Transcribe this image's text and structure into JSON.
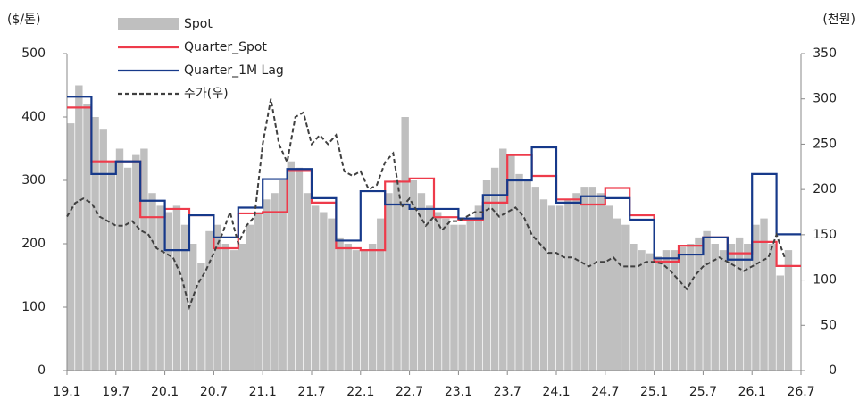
{
  "chart_data": {
    "type": "combo",
    "y_label": "($/톤)",
    "y2_label": "(천원)",
    "xlim": [
      0,
      90
    ],
    "xticks": [
      {
        "value": 0,
        "label": "19.1"
      },
      {
        "value": 6,
        "label": "19.7"
      },
      {
        "value": 12,
        "label": "20.1"
      },
      {
        "value": 18,
        "label": "20.7"
      },
      {
        "value": 24,
        "label": "21.1"
      },
      {
        "value": 30,
        "label": "21.7"
      },
      {
        "value": 36,
        "label": "22.1"
      },
      {
        "value": 42,
        "label": "22.7"
      },
      {
        "value": 48,
        "label": "23.1"
      },
      {
        "value": 54,
        "label": "23.7"
      },
      {
        "value": 60,
        "label": "24.1"
      },
      {
        "value": 66,
        "label": "24.7"
      },
      {
        "value": 72,
        "label": "25.1"
      },
      {
        "value": 78,
        "label": "25.7"
      },
      {
        "value": 84,
        "label": "26.1"
      },
      {
        "value": 90,
        "label": "26.7"
      }
    ],
    "ylim": [
      0,
      500
    ],
    "yticks": [
      0,
      100,
      200,
      300,
      400,
      500
    ],
    "y2lim": [
      0,
      350
    ],
    "y2ticks": [
      0,
      50,
      100,
      150,
      200,
      250,
      300,
      350
    ],
    "series": [
      {
        "name": "Spot",
        "type": "bar",
        "color": "#bfbfbf",
        "x": [
          0,
          1,
          2,
          3,
          4,
          5,
          6,
          7,
          8,
          9,
          10,
          11,
          12,
          13,
          14,
          15,
          16,
          17,
          18,
          19,
          20,
          21,
          22,
          23,
          24,
          25,
          26,
          27,
          28,
          29,
          30,
          31,
          32,
          33,
          34,
          35,
          36,
          37,
          38,
          39,
          40,
          41,
          42,
          43,
          44,
          45,
          46,
          47,
          48,
          49,
          50,
          51,
          52,
          53,
          54,
          55,
          56,
          57,
          58,
          59,
          60,
          61,
          62,
          63,
          64,
          65,
          66,
          67,
          68,
          69,
          70,
          71,
          72,
          73,
          74,
          75,
          76,
          77,
          78,
          79,
          80,
          81,
          82,
          83,
          84,
          85,
          86,
          87,
          88
        ],
        "values": [
          390,
          450,
          420,
          400,
          380,
          330,
          350,
          320,
          340,
          350,
          280,
          260,
          250,
          260,
          230,
          200,
          170,
          220,
          230,
          200,
          190,
          200,
          230,
          250,
          270,
          280,
          300,
          330,
          320,
          280,
          260,
          250,
          240,
          210,
          200,
          190,
          190,
          200,
          240,
          280,
          300,
          400,
          300,
          280,
          260,
          250,
          240,
          230,
          230,
          240,
          260,
          300,
          320,
          350,
          340,
          310,
          300,
          290,
          270,
          260,
          260,
          270,
          280,
          290,
          290,
          280,
          260,
          240,
          230,
          200,
          190,
          185,
          180,
          190,
          190,
          195,
          200,
          210,
          220,
          200,
          190,
          200,
          210,
          200,
          230,
          240,
          200,
          150,
          190
        ]
      },
      {
        "name": "Quarter_Spot",
        "type": "step",
        "color": "#ee3b4b",
        "x": [
          0,
          3,
          6,
          9,
          12,
          15,
          18,
          21,
          24,
          27,
          30,
          33,
          36,
          39,
          42,
          45,
          48,
          51,
          54,
          57,
          60,
          63,
          66,
          69,
          72,
          75,
          78,
          81,
          84,
          87
        ],
        "values": [
          415,
          330,
          330,
          242,
          255,
          245,
          193,
          248,
          250,
          315,
          265,
          193,
          190,
          298,
          303,
          242,
          237,
          265,
          340,
          307,
          270,
          262,
          288,
          245,
          172,
          197,
          210,
          185,
          203,
          165
        ]
      },
      {
        "name": "Quarter_1M Lag",
        "type": "step",
        "color": "#16398a",
        "x": [
          0,
          3,
          6,
          9,
          12,
          15,
          18,
          21,
          24,
          27,
          30,
          33,
          36,
          39,
          42,
          45,
          48,
          51,
          54,
          57,
          60,
          63,
          66,
          69,
          72,
          75,
          78,
          81,
          84,
          87
        ],
        "values": [
          432,
          310,
          330,
          268,
          190,
          245,
          210,
          257,
          302,
          318,
          272,
          205,
          283,
          262,
          255,
          255,
          240,
          277,
          300,
          352,
          265,
          275,
          272,
          238,
          177,
          183,
          210,
          175,
          310,
          215
        ]
      },
      {
        "name": "주가(우)",
        "type": "line",
        "axis": "y2",
        "color": "#404040",
        "dashed": true,
        "x": [
          0,
          1,
          2,
          3,
          4,
          5,
          6,
          7,
          8,
          9,
          10,
          11,
          12,
          13,
          14,
          15,
          16,
          17,
          18,
          19,
          20,
          21,
          22,
          23,
          24,
          25,
          26,
          27,
          28,
          29,
          30,
          31,
          32,
          33,
          34,
          35,
          36,
          37,
          38,
          39,
          40,
          41,
          42,
          43,
          44,
          45,
          46,
          47,
          48,
          49,
          50,
          51,
          52,
          53,
          54,
          55,
          56,
          57,
          58,
          59,
          60,
          61,
          62,
          63,
          64,
          65,
          66,
          67,
          68,
          69,
          70,
          71,
          72,
          73,
          74,
          75,
          76,
          77,
          78,
          79,
          80,
          81,
          82,
          83,
          84,
          85,
          86,
          87,
          88
        ],
        "values": [
          170,
          185,
          190,
          185,
          170,
          165,
          160,
          160,
          165,
          155,
          150,
          135,
          130,
          125,
          105,
          70,
          95,
          110,
          130,
          150,
          175,
          140,
          160,
          170,
          250,
          300,
          250,
          230,
          280,
          285,
          250,
          260,
          250,
          260,
          220,
          215,
          220,
          200,
          205,
          230,
          240,
          180,
          190,
          175,
          160,
          170,
          155,
          165,
          165,
          170,
          175,
          175,
          180,
          170,
          175,
          180,
          170,
          150,
          140,
          130,
          130,
          125,
          125,
          120,
          115,
          120,
          120,
          125,
          115,
          115,
          115,
          120,
          120,
          118,
          110,
          100,
          90,
          105,
          115,
          120,
          125,
          120,
          115,
          110,
          115,
          120,
          125,
          150,
          125
        ]
      }
    ]
  }
}
